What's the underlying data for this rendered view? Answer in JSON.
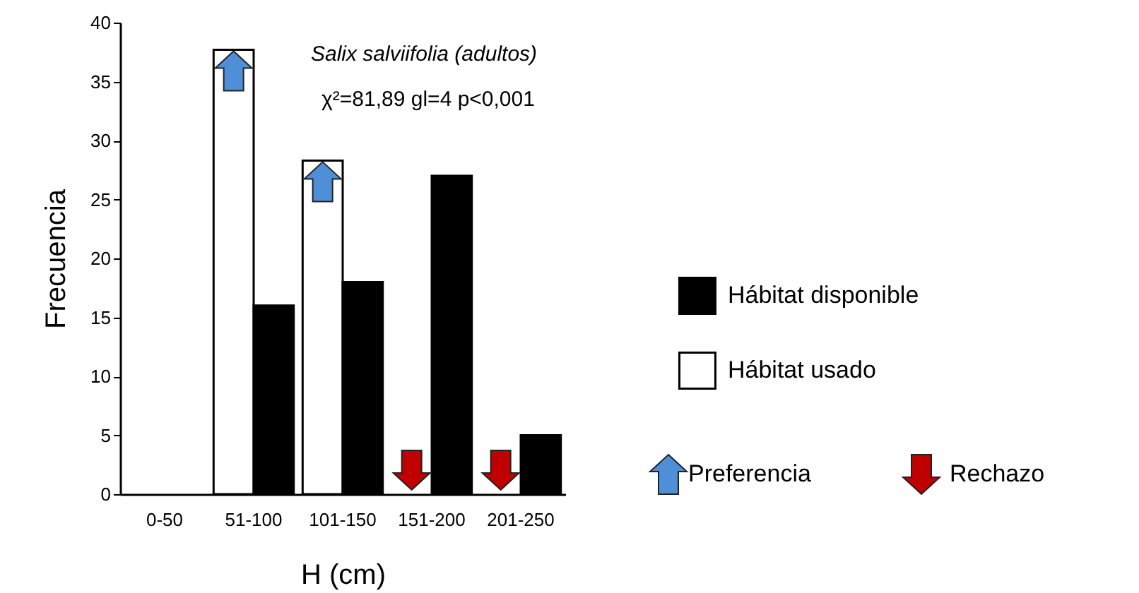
{
  "chart_data": {
    "type": "bar",
    "xlabel": "H (cm)",
    "ylabel": "Frecuencia",
    "categories": [
      "0-50",
      "51-100",
      "101-150",
      "151-200",
      "201-250"
    ],
    "series": [
      {
        "name": "Hábitat usado",
        "color": "#ffffff",
        "values": [
          0,
          37.7,
          28.3,
          0,
          0
        ]
      },
      {
        "name": "Hábitat disponible",
        "color": "#000000",
        "values": [
          0,
          16,
          18,
          27,
          5
        ]
      }
    ],
    "ylim": [
      0,
      40
    ],
    "yticks": [
      0,
      5,
      10,
      15,
      20,
      25,
      30,
      35,
      40
    ],
    "legend": "right",
    "annotations": [
      "Salix salviifolia (adultos)",
      "χ²=81,89 gl=4 p<0,001",
      "Preferencia",
      "Rechazo"
    ]
  }
}
